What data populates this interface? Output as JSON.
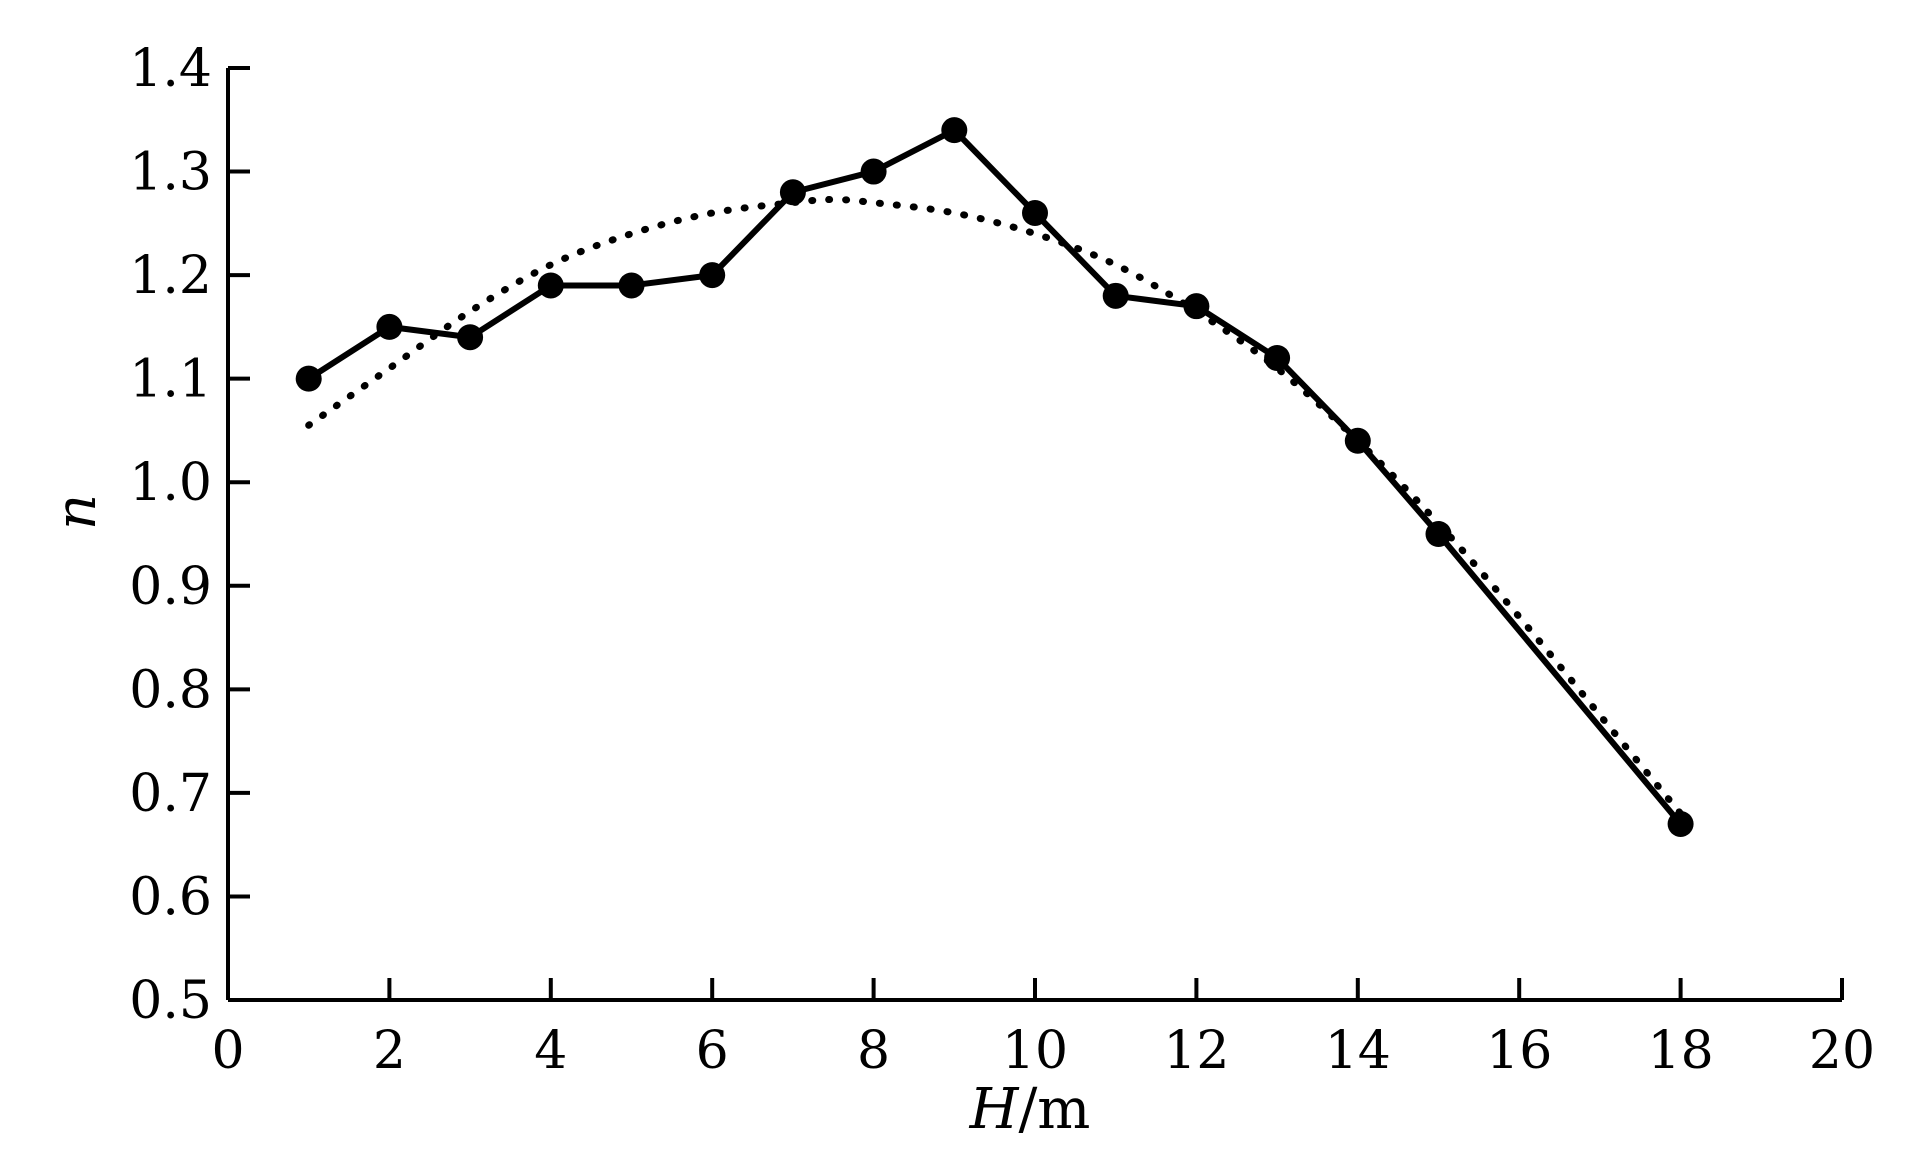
{
  "chart_data": {
    "type": "line",
    "xlabel": {
      "italic": "H",
      "unit": "/m"
    },
    "ylabel": "n",
    "xlim": [
      0,
      20
    ],
    "ylim": [
      0.5,
      1.4
    ],
    "x_ticks": [
      "0",
      "2",
      "4",
      "6",
      "8",
      "10",
      "12",
      "14",
      "16",
      "18",
      "20"
    ],
    "y_ticks": [
      "0.5",
      "0.6",
      "0.7",
      "0.8",
      "0.9",
      "1.0",
      "1.1",
      "1.2",
      "1.3",
      "1.4"
    ],
    "grid": false,
    "legend": "none",
    "series": [
      {
        "style": "solid-with-markers",
        "color": "#000000",
        "x": [
          1,
          2,
          3,
          4,
          5,
          6,
          7,
          8,
          9,
          10,
          11,
          12,
          13,
          14,
          15,
          18
        ],
        "y": [
          1.1,
          1.15,
          1.14,
          1.19,
          1.19,
          1.2,
          1.28,
          1.3,
          1.34,
          1.26,
          1.18,
          1.17,
          1.12,
          1.04,
          0.95,
          0.67
        ]
      },
      {
        "style": "dotted-fit",
        "color": "#000000",
        "x": [
          1,
          2,
          3,
          4,
          5,
          6,
          7,
          7.5,
          8,
          9,
          10,
          11,
          12,
          13,
          14,
          15,
          16,
          17,
          18
        ],
        "y": [
          1.055,
          1.11,
          1.165,
          1.21,
          1.24,
          1.26,
          1.27,
          1.273,
          1.27,
          1.26,
          1.24,
          1.21,
          1.165,
          1.11,
          1.04,
          0.96,
          0.87,
          0.775,
          0.68
        ]
      }
    ]
  }
}
